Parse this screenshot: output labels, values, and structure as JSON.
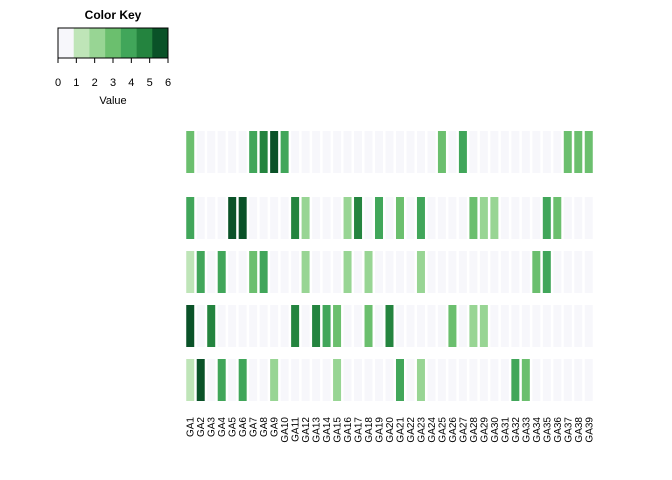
{
  "chart_data": {
    "type": "heatmap",
    "title": "",
    "xlabel": "",
    "ylabel": "",
    "columns": [
      "GA1",
      "GA2",
      "GA3",
      "GA4",
      "GA5",
      "GA6",
      "GA7",
      "GA8",
      "GA9",
      "GA10",
      "GA11",
      "GA12",
      "GA13",
      "GA14",
      "GA15",
      "GA16",
      "GA17",
      "GA18",
      "GA19",
      "GA20",
      "GA21",
      "GA22",
      "GA23",
      "GA24",
      "GA25",
      "GA26",
      "GA27",
      "GA28",
      "GA29",
      "GA30",
      "GA31",
      "GA32",
      "GA33",
      "GA34",
      "GA35",
      "GA36",
      "GA37",
      "GA38",
      "GA39"
    ],
    "rows": [
      [
        3,
        0,
        0,
        0,
        0,
        0,
        4,
        5,
        6,
        4,
        0,
        0,
        0,
        0,
        0,
        0,
        0,
        0,
        0,
        0,
        0,
        0,
        0,
        0,
        3,
        0,
        4,
        0,
        0,
        0,
        0,
        0,
        0,
        0,
        0,
        0,
        3,
        3,
        3
      ],
      [
        4,
        0,
        0,
        0,
        6,
        6,
        0,
        0,
        0,
        0,
        5,
        2,
        0,
        0,
        0,
        2,
        5,
        0,
        4,
        0,
        3,
        0,
        4,
        0,
        0,
        0,
        0,
        3,
        2,
        2,
        0,
        0,
        0,
        0,
        4,
        3,
        0,
        0,
        0
      ],
      [
        1,
        4,
        0,
        4,
        0,
        0,
        3,
        4,
        0,
        0,
        0,
        2,
        0,
        0,
        0,
        2,
        0,
        2,
        0,
        0,
        0,
        0,
        2,
        0,
        0,
        0,
        0,
        0,
        0,
        0,
        0,
        0,
        0,
        3,
        4,
        0,
        0,
        0,
        0
      ],
      [
        6,
        0,
        5,
        0,
        0,
        0,
        0,
        0,
        0,
        0,
        5,
        0,
        5,
        4,
        3,
        0,
        0,
        3,
        0,
        5,
        0,
        0,
        0,
        0,
        0,
        3,
        0,
        2,
        2,
        0,
        0,
        0,
        0,
        0,
        0,
        0,
        0,
        0,
        0
      ],
      [
        1,
        6,
        0,
        4,
        0,
        4,
        0,
        0,
        2,
        0,
        0,
        0,
        0,
        0,
        2,
        0,
        0,
        0,
        0,
        0,
        4,
        0,
        2,
        0,
        0,
        0,
        0,
        0,
        0,
        0,
        0,
        4,
        3,
        0,
        0,
        0,
        0,
        0,
        0
      ]
    ],
    "color_key": {
      "title": "Color Key",
      "label": "Value",
      "range": [
        0,
        6
      ],
      "ticks": [
        "0",
        "1",
        "2",
        "3",
        "4",
        "5",
        "6"
      ],
      "colors": [
        "#f7f7fb",
        "#bfe5b8",
        "#98d594",
        "#6bbf6e",
        "#41a65a",
        "#24843f",
        "#0a5228"
      ]
    },
    "grid": false
  }
}
